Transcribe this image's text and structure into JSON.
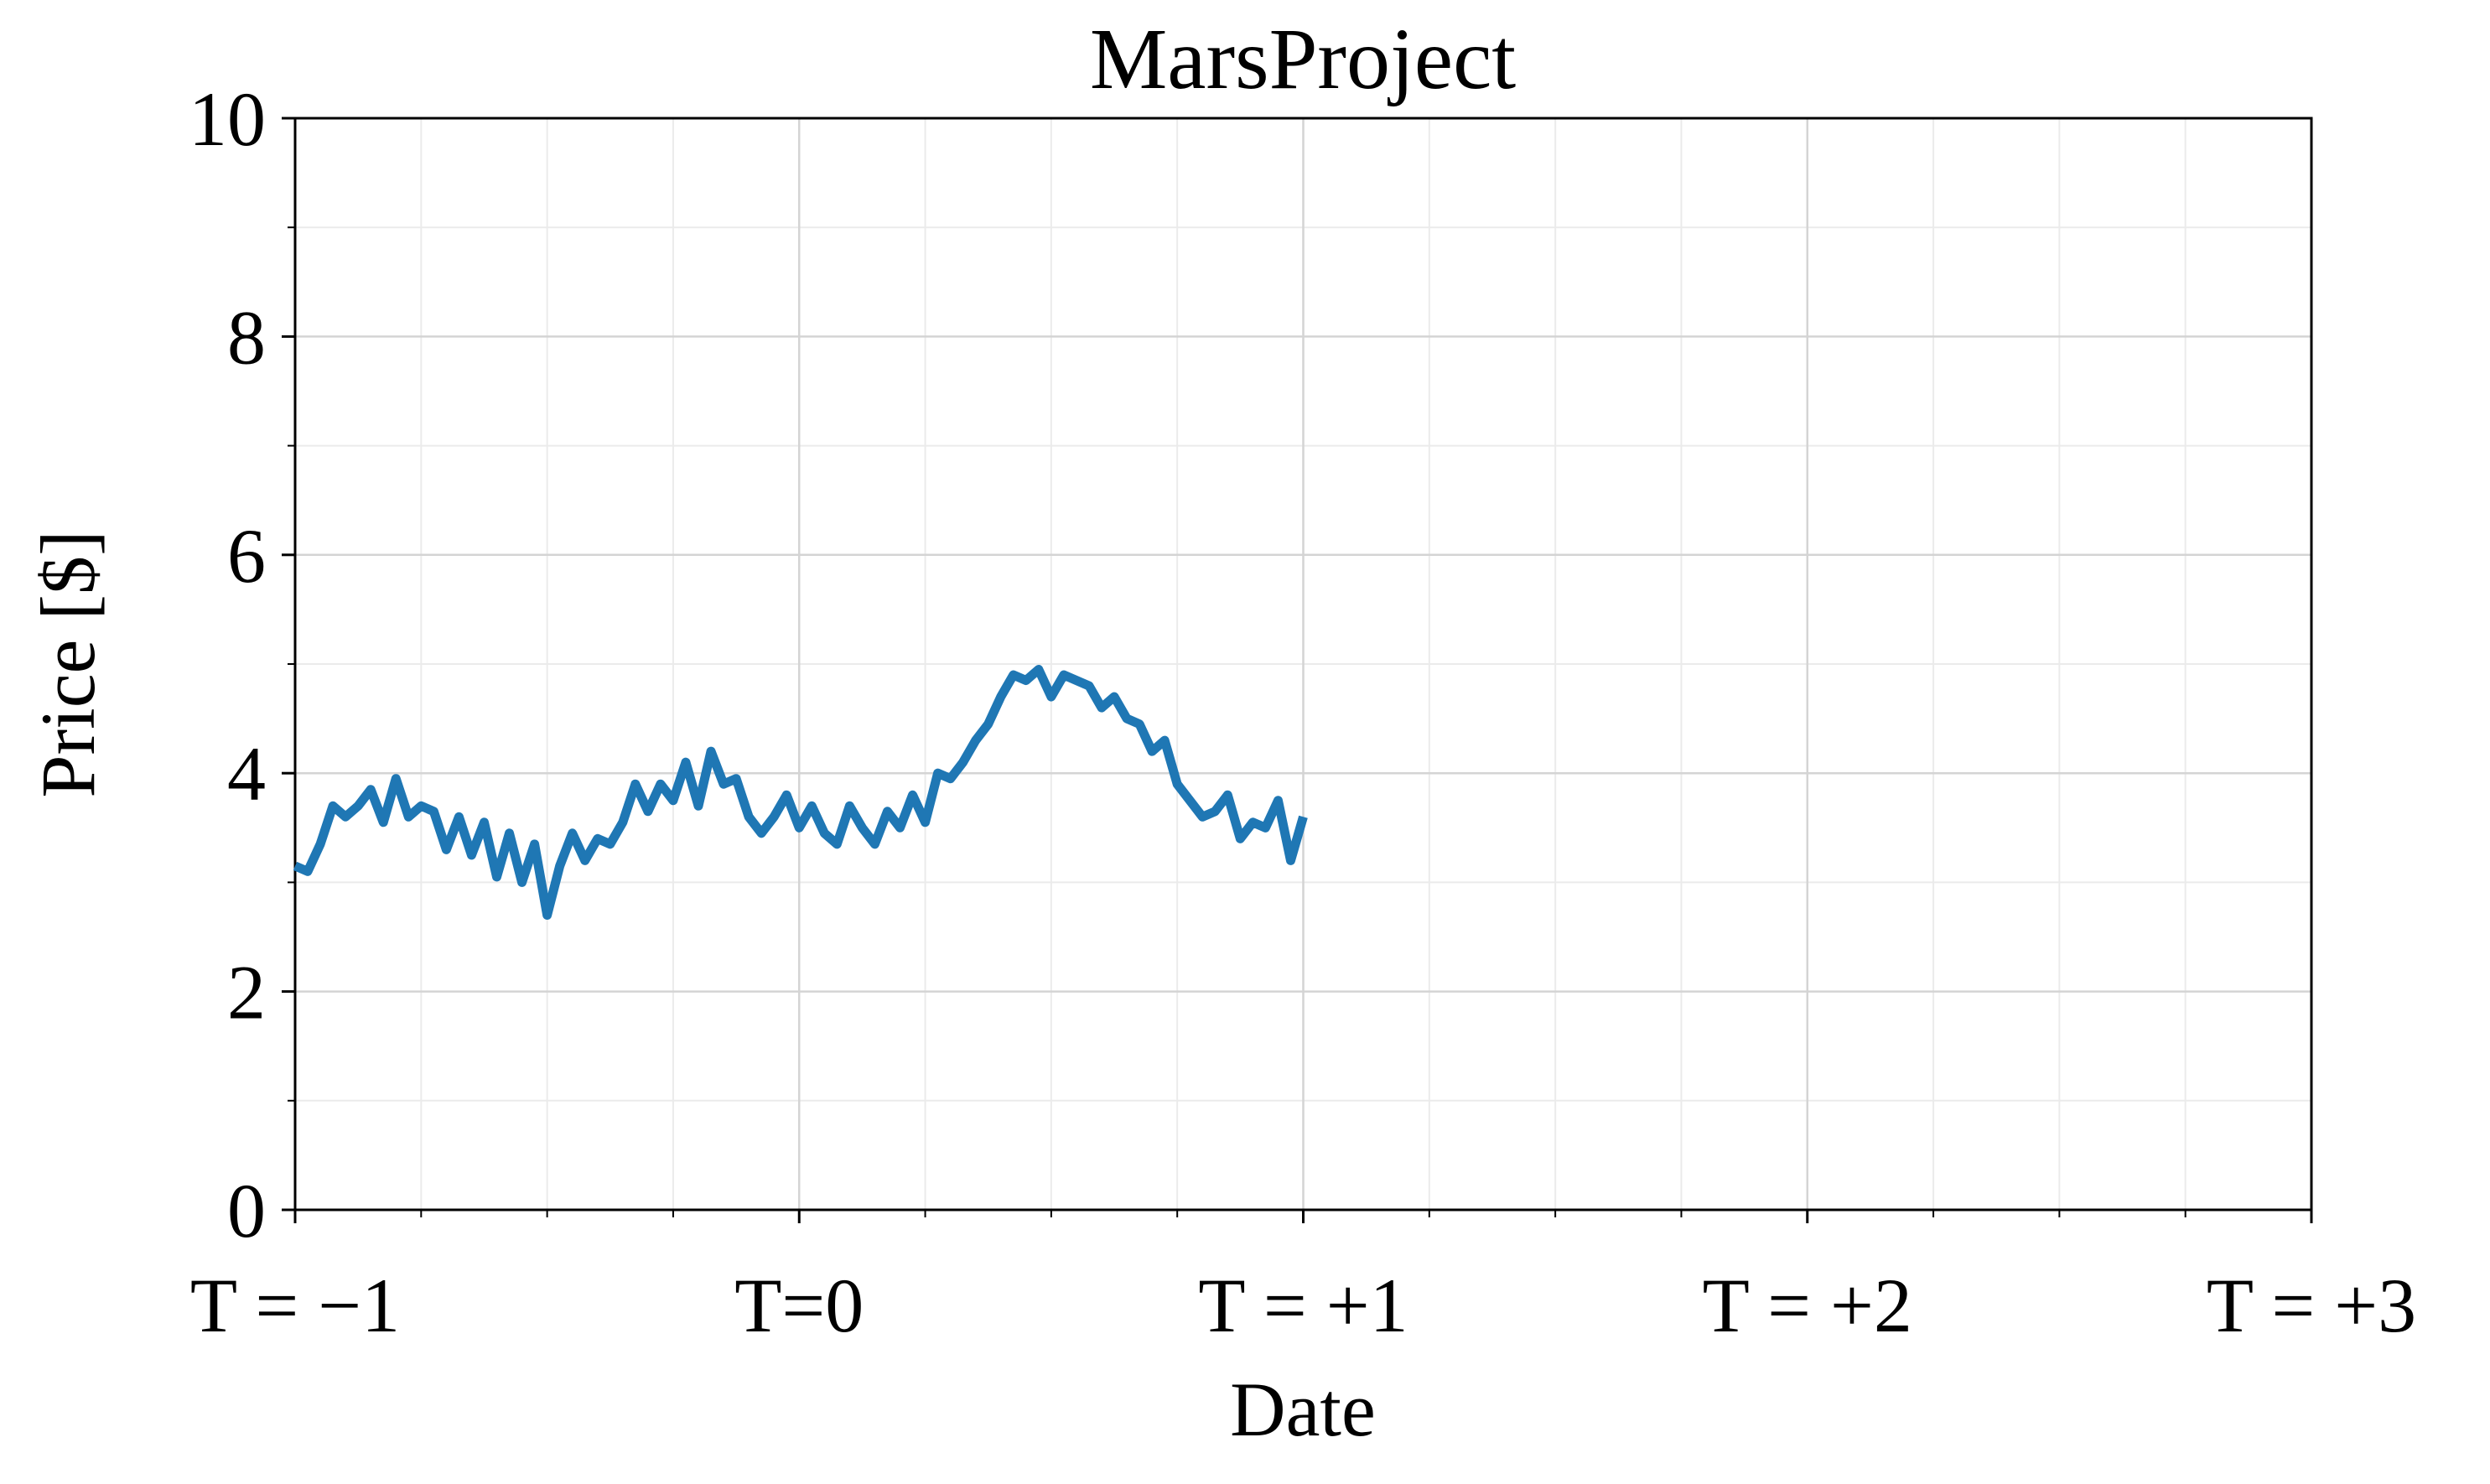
{
  "chart_data": {
    "type": "line",
    "title": "MarsProject",
    "xlabel": "Date",
    "ylabel": "Price [$]",
    "x": [
      -1.0,
      -0.975,
      -0.95,
      -0.925,
      -0.9,
      -0.875,
      -0.85,
      -0.825,
      -0.8,
      -0.775,
      -0.75,
      -0.725,
      -0.7,
      -0.675,
      -0.65,
      -0.625,
      -0.6,
      -0.575,
      -0.55,
      -0.525,
      -0.5,
      -0.475,
      -0.45,
      -0.425,
      -0.4,
      -0.375,
      -0.35,
      -0.325,
      -0.3,
      -0.275,
      -0.25,
      -0.225,
      -0.2,
      -0.175,
      -0.15,
      -0.125,
      -0.1,
      -0.075,
      -0.05,
      -0.025,
      0,
      0.025,
      0.05,
      0.075,
      0.1,
      0.125,
      0.15,
      0.175,
      0.2,
      0.225,
      0.25,
      0.275,
      0.3,
      0.325,
      0.35,
      0.375,
      0.4,
      0.425,
      0.45,
      0.475,
      0.5,
      0.525,
      0.55,
      0.575,
      0.6,
      0.625,
      0.65,
      0.675,
      0.7,
      0.725,
      0.75,
      0.775,
      0.8,
      0.825,
      0.85,
      0.875,
      0.9,
      0.925,
      0.95,
      0.975,
      1.0
    ],
    "series": [
      {
        "color": "#1f77b4",
        "values": [
          3.15,
          3.1,
          3.35,
          3.7,
          3.6,
          3.7,
          3.85,
          3.55,
          3.95,
          3.6,
          3.7,
          3.65,
          3.3,
          3.6,
          3.25,
          3.55,
          3.05,
          3.45,
          3.0,
          3.35,
          2.7,
          3.15,
          3.45,
          3.2,
          3.4,
          3.35,
          3.55,
          3.9,
          3.65,
          3.9,
          3.75,
          4.1,
          3.7,
          4.2,
          3.9,
          3.95,
          3.6,
          3.45,
          3.6,
          3.8,
          3.5,
          3.7,
          3.45,
          3.35,
          3.7,
          3.5,
          3.35,
          3.65,
          3.5,
          3.8,
          3.55,
          4.0,
          3.95,
          4.1,
          4.3,
          4.45,
          4.7,
          4.9,
          4.85,
          4.95,
          4.7,
          4.9,
          4.85,
          4.8,
          4.6,
          4.7,
          4.5,
          4.45,
          4.2,
          4.3,
          3.9,
          3.75,
          3.6,
          3.65,
          3.8,
          3.4,
          3.55,
          3.5,
          3.75,
          3.2,
          3.6
        ]
      }
    ],
    "xlim": [
      -1,
      3
    ],
    "ylim": [
      0,
      10
    ],
    "xticks": [
      {
        "value": -1,
        "label": "T = −1"
      },
      {
        "value": 0,
        "label": "T=0"
      },
      {
        "value": 1,
        "label": "T = +1"
      },
      {
        "value": 2,
        "label": "T = +2"
      },
      {
        "value": 3,
        "label": "T = +3"
      }
    ],
    "yticks": [
      0,
      2,
      4,
      6,
      8,
      10
    ],
    "xminorticks": [
      -0.75,
      -0.5,
      -0.25,
      0.25,
      0.5,
      0.75,
      1.25,
      1.5,
      1.75,
      2.25,
      2.5,
      2.75
    ],
    "yminorticks": [
      1,
      3,
      5,
      7,
      9
    ],
    "grid": true
  }
}
